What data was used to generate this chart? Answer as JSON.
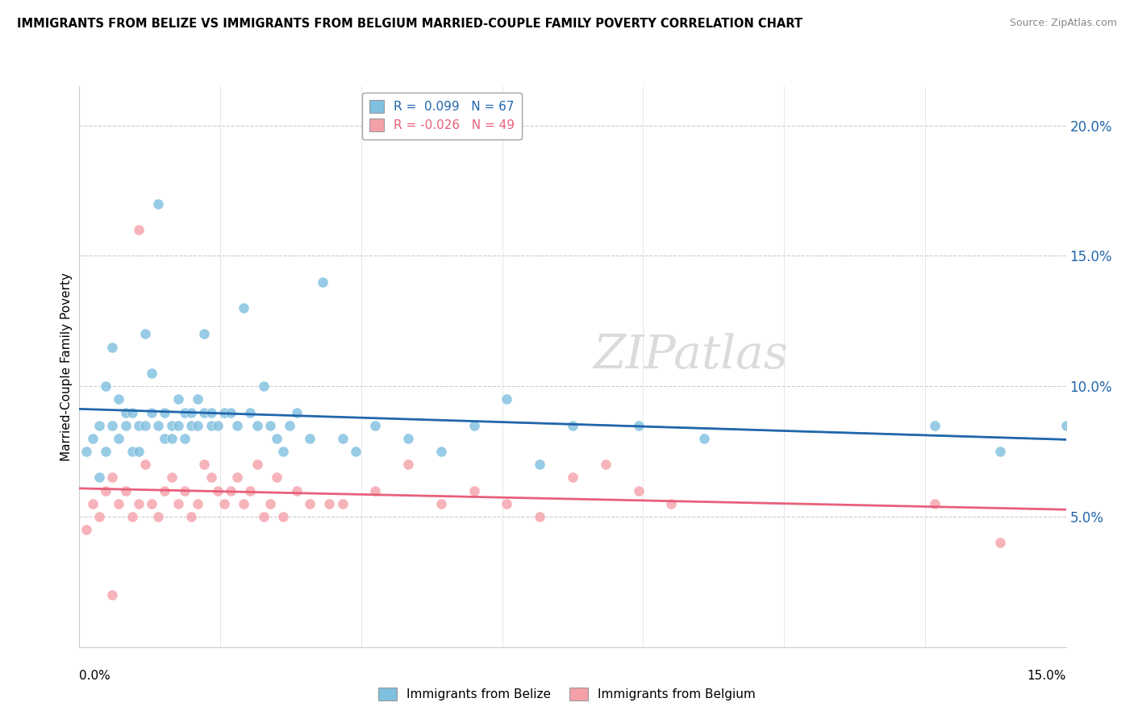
{
  "title": "IMMIGRANTS FROM BELIZE VS IMMIGRANTS FROM BELGIUM MARRIED-COUPLE FAMILY POVERTY CORRELATION CHART",
  "source": "Source: ZipAtlas.com",
  "ylabel": "Married-Couple Family Poverty",
  "right_yticks": [
    "5.0%",
    "10.0%",
    "15.0%",
    "20.0%"
  ],
  "right_ytick_vals": [
    0.05,
    0.1,
    0.15,
    0.2
  ],
  "xlim": [
    0.0,
    0.15
  ],
  "ylim": [
    0.0,
    0.215
  ],
  "watermark": "ZIPatlas",
  "legend_belize_r": "0.099",
  "legend_belize_n": "67",
  "legend_belgium_r": "-0.026",
  "legend_belgium_n": "49",
  "belize_color": "#7fbfdf",
  "belgium_color": "#f4a0a8",
  "belize_line_color": "#2166ac",
  "belgium_line_color": "#e8607a",
  "belize_scatter_x": [
    0.001,
    0.002,
    0.003,
    0.003,
    0.004,
    0.004,
    0.005,
    0.005,
    0.006,
    0.006,
    0.007,
    0.007,
    0.008,
    0.008,
    0.009,
    0.009,
    0.01,
    0.01,
    0.011,
    0.011,
    0.012,
    0.012,
    0.013,
    0.013,
    0.014,
    0.014,
    0.015,
    0.015,
    0.016,
    0.016,
    0.017,
    0.017,
    0.018,
    0.018,
    0.019,
    0.019,
    0.02,
    0.02,
    0.021,
    0.022,
    0.023,
    0.024,
    0.025,
    0.026,
    0.027,
    0.028,
    0.029,
    0.03,
    0.031,
    0.032,
    0.033,
    0.035,
    0.037,
    0.04,
    0.042,
    0.045,
    0.05,
    0.055,
    0.06,
    0.065,
    0.07,
    0.075,
    0.085,
    0.095,
    0.13,
    0.14,
    0.15
  ],
  "belize_scatter_y": [
    0.075,
    0.08,
    0.085,
    0.065,
    0.075,
    0.1,
    0.115,
    0.085,
    0.095,
    0.08,
    0.09,
    0.085,
    0.09,
    0.075,
    0.075,
    0.085,
    0.12,
    0.085,
    0.09,
    0.105,
    0.17,
    0.085,
    0.09,
    0.08,
    0.08,
    0.085,
    0.095,
    0.085,
    0.09,
    0.08,
    0.085,
    0.09,
    0.095,
    0.085,
    0.12,
    0.09,
    0.09,
    0.085,
    0.085,
    0.09,
    0.09,
    0.085,
    0.13,
    0.09,
    0.085,
    0.1,
    0.085,
    0.08,
    0.075,
    0.085,
    0.09,
    0.08,
    0.14,
    0.08,
    0.075,
    0.085,
    0.08,
    0.075,
    0.085,
    0.095,
    0.07,
    0.085,
    0.085,
    0.08,
    0.085,
    0.075,
    0.085
  ],
  "belgium_scatter_x": [
    0.001,
    0.002,
    0.003,
    0.004,
    0.005,
    0.005,
    0.006,
    0.007,
    0.008,
    0.009,
    0.009,
    0.01,
    0.011,
    0.012,
    0.013,
    0.014,
    0.015,
    0.016,
    0.017,
    0.018,
    0.019,
    0.02,
    0.021,
    0.022,
    0.023,
    0.024,
    0.025,
    0.026,
    0.027,
    0.028,
    0.029,
    0.03,
    0.031,
    0.033,
    0.035,
    0.038,
    0.04,
    0.045,
    0.05,
    0.055,
    0.06,
    0.065,
    0.07,
    0.075,
    0.08,
    0.085,
    0.09,
    0.13,
    0.14
  ],
  "belgium_scatter_y": [
    0.045,
    0.055,
    0.05,
    0.06,
    0.02,
    0.065,
    0.055,
    0.06,
    0.05,
    0.055,
    0.16,
    0.07,
    0.055,
    0.05,
    0.06,
    0.065,
    0.055,
    0.06,
    0.05,
    0.055,
    0.07,
    0.065,
    0.06,
    0.055,
    0.06,
    0.065,
    0.055,
    0.06,
    0.07,
    0.05,
    0.055,
    0.065,
    0.05,
    0.06,
    0.055,
    0.055,
    0.055,
    0.06,
    0.07,
    0.055,
    0.06,
    0.055,
    0.05,
    0.065,
    0.07,
    0.06,
    0.055,
    0.055,
    0.04
  ]
}
